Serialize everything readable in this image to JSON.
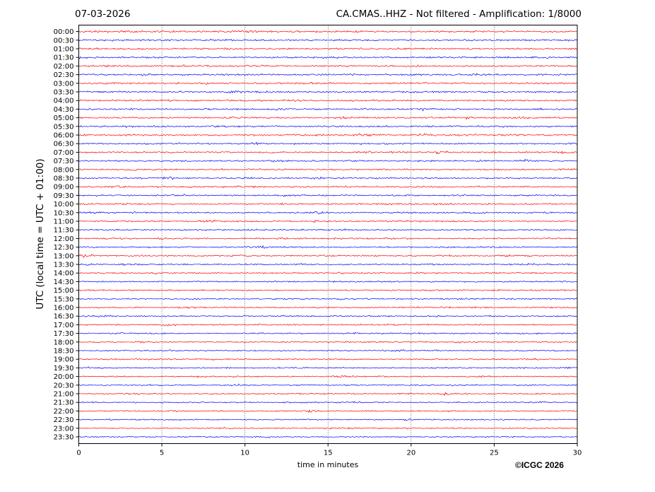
{
  "header": {
    "date": "07-03-2026",
    "title": "CA.CMAS..HHZ - Not filtered - Amplification: 1/8000"
  },
  "footer": {
    "copyright": "©ICGC 2026"
  },
  "colors": {
    "trace_a": "#ff0000",
    "trace_b": "#0000ff",
    "grid": "#000000"
  },
  "chart_data": {
    "type": "line",
    "subtype": "helicorder",
    "xlabel": "time in minutes",
    "ylabel": "UTC (local time = UTC + 01:00)",
    "xlim": [
      0,
      30
    ],
    "xticks": [
      0,
      5,
      10,
      15,
      20,
      25,
      30
    ],
    "grid": "vertical dotted lines at each x tick",
    "row_labels": [
      "00:00",
      "00:30",
      "01:00",
      "01:30",
      "02:00",
      "02:30",
      "03:00",
      "03:30",
      "04:00",
      "04:30",
      "05:00",
      "05:30",
      "06:00",
      "06:30",
      "07:00",
      "07:30",
      "08:00",
      "08:30",
      "09:00",
      "09:30",
      "10:00",
      "10:30",
      "11:00",
      "11:30",
      "12:00",
      "12:30",
      "13:00",
      "13:30",
      "14:00",
      "14:30",
      "15:00",
      "15:30",
      "16:00",
      "16:30",
      "17:00",
      "17:30",
      "18:00",
      "18:30",
      "19:00",
      "19:30",
      "20:00",
      "20:30",
      "21:00",
      "21:30",
      "22:00",
      "22:30",
      "23:00",
      "23:30"
    ],
    "row_color_pattern": [
      "trace_a",
      "trace_b"
    ],
    "series": [
      {
        "values": [
          [
            0.5,
            1.6
          ],
          [
            10,
            1.4
          ],
          [
            14.5,
            1.3
          ]
        ]
      },
      {
        "values": [
          [
            3.8,
            1.5
          ],
          [
            8,
            1.5
          ],
          [
            16,
            1.2
          ]
        ]
      },
      {
        "values": [
          [
            9,
            1.3
          ],
          [
            21,
            1.3
          ]
        ]
      },
      {
        "values": [
          [
            0.2,
            1.4
          ],
          [
            15,
            1.4
          ],
          [
            28,
            1.3
          ]
        ]
      },
      {
        "values": [
          [
            6.5,
            1.3
          ],
          [
            10.7,
            1.4
          ],
          [
            25,
            1.2
          ]
        ]
      },
      {
        "values": [
          [
            4,
            1.3
          ],
          [
            20,
            1.2
          ],
          [
            24,
            1.6
          ]
        ]
      },
      {
        "values": [
          [
            7.8,
            1.4
          ],
          [
            13.5,
            1.3
          ],
          [
            26.5,
            1.4
          ]
        ]
      },
      {
        "values": [
          [
            9.3,
            1.6
          ],
          [
            11.3,
            1.3
          ],
          [
            21.8,
            1.3
          ]
        ]
      },
      {
        "values": [
          [
            1.4,
            1.2
          ],
          [
            13,
            1.3
          ],
          [
            18,
            1.2
          ]
        ]
      },
      {
        "values": [
          [
            3.3,
            1.5
          ],
          [
            12,
            1.3
          ],
          [
            21,
            1.5
          ],
          [
            27.7,
            1.3
          ]
        ]
      },
      {
        "values": [
          [
            9.2,
            1.8
          ],
          [
            16.2,
            1.5
          ],
          [
            23.3,
            1.5
          ],
          [
            26.4,
            1.5
          ]
        ]
      },
      {
        "values": [
          [
            2.9,
            1.4
          ],
          [
            8.3,
            1.4
          ],
          [
            21.5,
            1.2
          ]
        ]
      },
      {
        "values": [
          [
            0.3,
            1.3
          ],
          [
            17.1,
            1.6
          ],
          [
            20.8,
            1.4
          ],
          [
            26.3,
            1.4
          ]
        ]
      },
      {
        "values": [
          [
            10.6,
            1.5
          ],
          [
            18.5,
            1.3
          ],
          [
            29.7,
            1.4
          ]
        ]
      },
      {
        "values": [
          [
            5,
            1.3
          ],
          [
            17.2,
            1.5
          ],
          [
            21.8,
            1.6
          ],
          [
            29.4,
            1.5
          ]
        ]
      },
      {
        "values": [
          [
            6,
            1.3
          ],
          [
            12,
            1.3
          ],
          [
            26.9,
            1.6
          ]
        ]
      },
      {
        "values": [
          [
            3.2,
            1.6
          ],
          [
            8.4,
            1.3
          ],
          [
            29.6,
            1.4
          ]
        ]
      },
      {
        "values": [
          [
            5.4,
            1.8
          ],
          [
            10.2,
            1.3
          ],
          [
            14.3,
            1.2
          ]
        ]
      },
      {
        "values": [
          [
            2.5,
            1.4
          ],
          [
            9.6,
            1.3
          ],
          [
            21.5,
            1.3
          ]
        ]
      },
      {
        "values": [
          [
            6.3,
            1.3
          ],
          [
            12.3,
            1.2
          ],
          [
            26.9,
            1.3
          ]
        ]
      },
      {
        "values": [
          [
            2.6,
            1.3
          ],
          [
            18.5,
            1.3
          ],
          [
            21.6,
            1.4
          ]
        ]
      },
      {
        "values": [
          [
            3.3,
            1.3
          ],
          [
            14.5,
            1.4
          ],
          [
            24,
            1.2
          ]
        ]
      },
      {
        "values": [
          [
            7.9,
            1.6
          ],
          [
            14.3,
            1.3
          ],
          [
            19.3,
            1.2
          ]
        ]
      },
      {
        "values": [
          [
            10.6,
            1.2
          ],
          [
            15.6,
            1.5
          ],
          [
            25.4,
            1.3
          ]
        ]
      },
      {
        "values": [
          [
            5.2,
            1.2
          ],
          [
            12.4,
            1.3
          ],
          [
            18.7,
            1.2
          ]
        ]
      },
      {
        "values": [
          [
            11.1,
            1.6
          ],
          [
            23.5,
            1.3
          ]
        ]
      },
      {
        "values": [
          [
            0.35,
            2.2
          ],
          [
            9.6,
            1.4
          ],
          [
            15,
            1.3
          ],
          [
            25.8,
            1.3
          ]
        ]
      },
      {
        "values": [
          [
            2.5,
            1.2
          ],
          [
            13.5,
            1.2
          ],
          [
            27,
            1.3
          ]
        ]
      },
      {
        "values": [
          [
            4.4,
            1.2
          ],
          [
            15.9,
            1.3
          ],
          [
            20.5,
            1.2
          ]
        ]
      },
      {
        "values": [
          [
            18.3,
            1.8
          ],
          [
            29.9,
            1.4
          ]
        ]
      },
      {
        "values": [
          [
            0.5,
            1.2
          ],
          [
            10.3,
            1.2
          ]
        ]
      },
      {
        "values": [
          [
            6.9,
            1.2
          ],
          [
            15.7,
            1.2
          ]
        ]
      },
      {
        "values": [
          [
            6.5,
            1.5
          ],
          [
            22.1,
            1.2
          ]
        ]
      },
      {
        "values": [
          [
            1.4,
            1.3
          ],
          [
            13.9,
            1.2
          ],
          [
            21.4,
            1.3
          ]
        ]
      },
      {
        "values": [
          [
            5.4,
            1.4
          ],
          [
            11.1,
            1.2
          ],
          [
            18.7,
            1.2
          ]
        ]
      },
      {
        "values": [
          [
            2.4,
            1.1
          ],
          [
            16.7,
            1.1
          ],
          [
            27.4,
            1.2
          ]
        ]
      },
      {
        "values": [
          [
            3.8,
            1.2
          ],
          [
            22.9,
            1.5
          ]
        ]
      },
      {
        "values": [
          [
            5.2,
            1.1
          ],
          [
            19.2,
            1.1
          ]
        ]
      },
      {
        "values": [
          [
            8.3,
            1.1
          ],
          [
            27.2,
            1.2
          ]
        ]
      },
      {
        "values": [
          [
            0.7,
            1.1
          ],
          [
            13.4,
            1.1
          ],
          [
            29.3,
            1.1
          ]
        ]
      },
      {
        "values": [
          [
            7.4,
            1.3
          ],
          [
            15.9,
            1.4
          ],
          [
            24.5,
            1.2
          ]
        ]
      },
      {
        "values": [
          [
            9.6,
            1.3
          ],
          [
            22.2,
            1.2
          ]
        ]
      },
      {
        "values": [
          [
            3.4,
            1.1
          ],
          [
            22.1,
            1.3
          ]
        ]
      },
      {
        "values": [
          [
            16.5,
            1.1
          ],
          [
            27.8,
            1.1
          ]
        ]
      },
      {
        "values": [
          [
            5.8,
            1.1
          ],
          [
            13.9,
            1.3
          ]
        ]
      },
      {
        "values": [
          [
            2.2,
            1.2
          ],
          [
            19.7,
            1.2
          ]
        ]
      },
      {
        "values": [
          [
            8.7,
            1.1
          ],
          [
            15.9,
            1.1
          ]
        ]
      },
      {
        "values": [
          [
            11.4,
            1.1
          ],
          [
            26.3,
            1.1
          ]
        ]
      }
    ]
  }
}
